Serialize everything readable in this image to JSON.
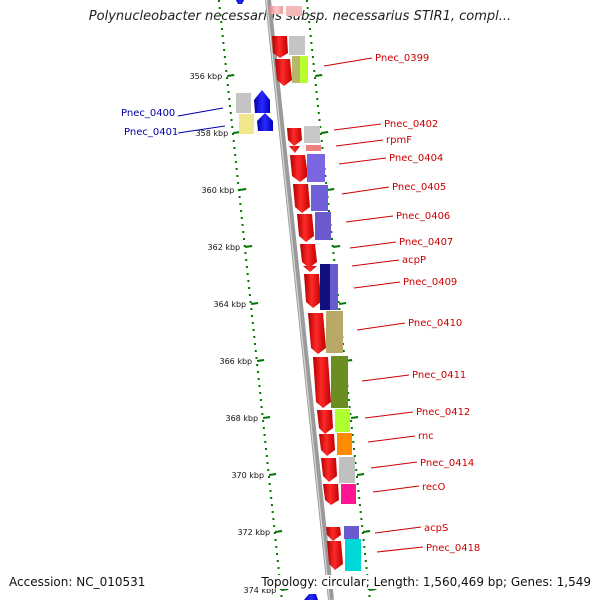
{
  "title": "Polynucleobacter necessarius subsp. necessarius STIR1, compl...",
  "footer": {
    "accession": "Accession: NC_010531",
    "summary": "Topology: circular; Length: 1,560,469 bp; Genes: 1,549"
  },
  "ticks": [
    "356 kbp",
    "358 kbp",
    "360 kbp",
    "362 kbp",
    "364 kbp",
    "366 kbp",
    "368 kbp",
    "370 kbp",
    "372 kbp",
    "374 kbp"
  ],
  "colors": {
    "cds_forward": "#ff0000",
    "cds_reverse": "#0000ee",
    "backbone": "#888888",
    "dotted_track": "#007700",
    "label_forward": "#cc0000",
    "label_reverse": "#0000aa"
  },
  "genes": {
    "right": [
      "Pnec_0399",
      "Pnec_0402",
      "rpmF",
      "Pnec_0404",
      "Pnec_0405",
      "Pnec_0406",
      "Pnec_0407",
      "acpP",
      "Pnec_0409",
      "Pnec_0410",
      "Pnec_0411",
      "Pnec_0412",
      "rnc",
      "Pnec_0414",
      "recO",
      "acpS",
      "Pnec_0418"
    ],
    "left": [
      "Pnec_0400",
      "Pnec_0401"
    ]
  }
}
